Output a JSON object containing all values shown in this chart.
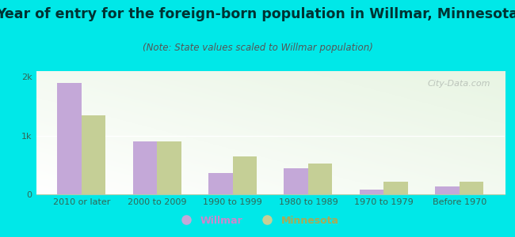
{
  "title": "Year of entry for the foreign-born population in Willmar, Minnesota",
  "subtitle": "(Note: State values scaled to Willmar population)",
  "categories": [
    "2010 or later",
    "2000 to 2009",
    "1990 to 1999",
    "1980 to 1989",
    "1970 to 1979",
    "Before 1970"
  ],
  "willmar": [
    1900,
    900,
    370,
    450,
    75,
    130
  ],
  "minnesota": [
    1350,
    900,
    650,
    530,
    210,
    210
  ],
  "willmar_color": "#c4a8d8",
  "minnesota_color": "#c5cf96",
  "background_color": "#00e8e8",
  "plot_bg_color": "#e8f5e2",
  "ylim": [
    0,
    2100
  ],
  "ytick_labels": [
    "0",
    "1k",
    "2k"
  ],
  "ytick_vals": [
    0,
    1000,
    2000
  ],
  "bar_width": 0.32,
  "title_fontsize": 12.5,
  "subtitle_fontsize": 8.5,
  "tick_fontsize": 8,
  "legend_fontsize": 9,
  "axis_color": "#336655",
  "title_color": "#003333",
  "subtitle_color": "#555555",
  "watermark_text": "City-Data.com"
}
